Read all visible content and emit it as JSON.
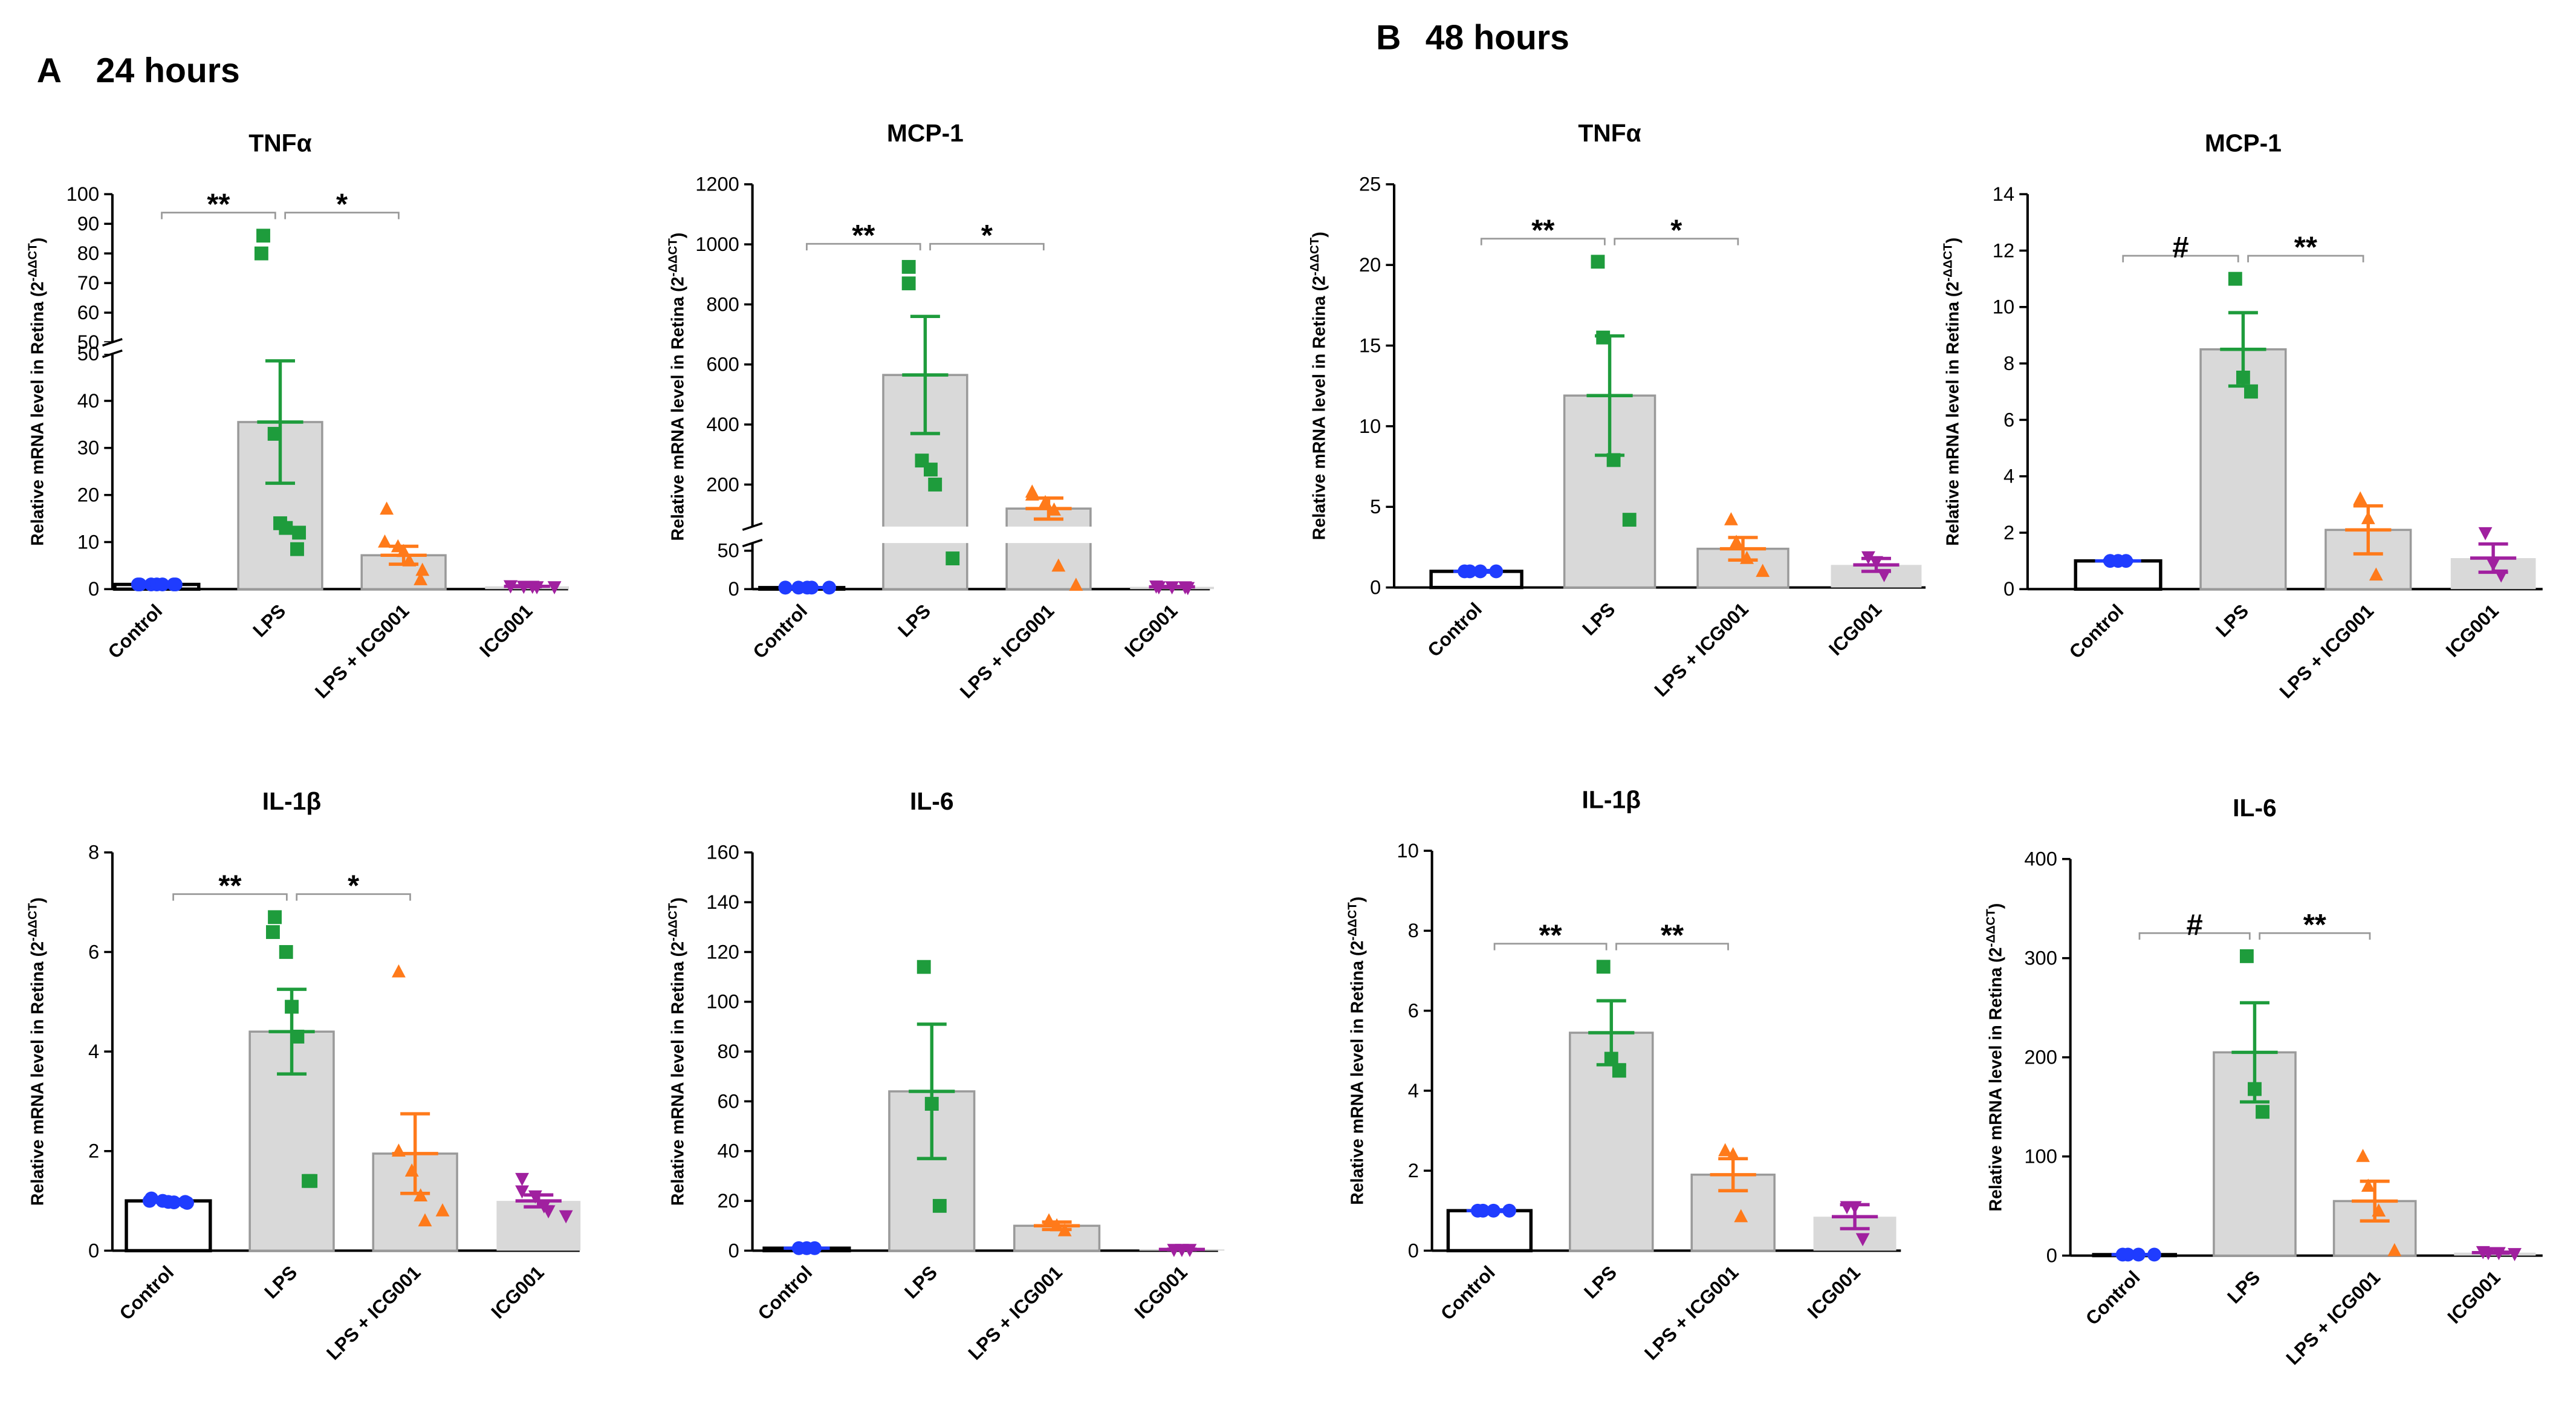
{
  "sections": [
    {
      "letter": "A",
      "title": "24 hours"
    },
    {
      "letter": "B",
      "title": "48 hours"
    }
  ],
  "groups_style": [
    {
      "color": "#1f3cff",
      "marker": "circle",
      "bar_color": "#ffffff",
      "bar_edge": "#000000"
    },
    {
      "color": "#1e9c3c",
      "marker": "square",
      "bar_color": "#d9d9d9",
      "bar_edge": "#9a9a9a"
    },
    {
      "color": "#ff7a1a",
      "marker": "triangle-up",
      "bar_color": "#d9d9d9",
      "bar_edge": "#9a9a9a"
    },
    {
      "color": "#a0209f",
      "marker": "triangle-down",
      "bar_color": "#d9d9d9",
      "bar_edge": "none"
    }
  ],
  "chart_data": [
    {
      "type": "bar",
      "title": "TNFα",
      "ylabel": "Relative mRNA level in Retina (2",
      "ylabel_sup": "-ΔΔCT",
      "ylabel_end": ")",
      "categories": [
        "Control",
        "LPS",
        "LPS + ICG001",
        "ICG001"
      ],
      "ylim": [
        0,
        50
      ],
      "yticks": [
        0,
        10,
        20,
        30,
        40,
        50
      ],
      "ylim_upper": [
        50,
        100
      ],
      "yticks_upper": [
        50,
        60,
        70,
        80,
        90,
        100
      ],
      "groups": [
        {
          "mean": 1,
          "sem": 0.1,
          "points": [
            1,
            1,
            1,
            1,
            1,
            1,
            1
          ]
        },
        {
          "mean": 35.5,
          "sem": 13,
          "points": [
            86,
            80,
            33,
            14,
            13,
            12,
            8.5
          ]
        },
        {
          "mean": 7.2,
          "sem": 1.9,
          "points": [
            17,
            10,
            9,
            8,
            6,
            4,
            2
          ]
        },
        {
          "mean": 0.6,
          "sem": 0.1,
          "points": [
            0.7,
            0.7,
            0.6,
            0.6,
            0.5,
            0.5
          ]
        }
      ],
      "significance": [
        {
          "from": 0,
          "to": 1,
          "label": "**"
        },
        {
          "from": 1,
          "to": 2,
          "label": "*"
        }
      ]
    },
    {
      "type": "bar",
      "title": "MCP-1",
      "ylabel": "Relative mRNA level in Retina (2",
      "ylabel_sup": "-ΔΔCT",
      "ylabel_end": ")",
      "categories": [
        "Control",
        "LPS",
        "LPS + ICG001",
        "ICG001"
      ],
      "ylim": [
        0,
        60
      ],
      "yticks": [
        0,
        50
      ],
      "ylim_upper": [
        60,
        1200
      ],
      "yticks_upper": [
        200,
        400,
        600,
        800,
        1000,
        1200
      ],
      "groups": [
        {
          "mean": 2,
          "sem": 0.3,
          "points": [
            2,
            2,
            2,
            2,
            2,
            2
          ]
        },
        {
          "mean": 565,
          "sem": 195,
          "points": [
            925,
            870,
            280,
            250,
            200,
            40
          ]
        },
        {
          "mean": 120,
          "sem": 35,
          "points": [
            175,
            165,
            140,
            115,
            30,
            5
          ]
        },
        {
          "mean": 3,
          "sem": 0.5,
          "points": [
            4,
            3,
            3,
            3,
            2
          ]
        }
      ],
      "significance": [
        {
          "from": 0,
          "to": 1,
          "label": "**"
        },
        {
          "from": 1,
          "to": 2,
          "label": "*"
        }
      ]
    },
    {
      "type": "bar",
      "title": "TNFα",
      "ylabel": "Relative mRNA level in Retina (2",
      "ylabel_sup": "-ΔΔCT",
      "ylabel_end": ")",
      "categories": [
        "Control",
        "LPS",
        "LPS + ICG001",
        "ICG001"
      ],
      "ylim": [
        0,
        25
      ],
      "yticks": [
        0,
        5,
        10,
        15,
        20,
        25
      ],
      "groups": [
        {
          "mean": 1,
          "sem": 0.05,
          "points": [
            1,
            1,
            1,
            1
          ]
        },
        {
          "mean": 11.9,
          "sem": 3.7,
          "points": [
            20.2,
            15.5,
            7.9,
            4.2
          ]
        },
        {
          "mean": 2.4,
          "sem": 0.7,
          "points": [
            4.2,
            2.8,
            1.8,
            1.0
          ]
        },
        {
          "mean": 1.4,
          "sem": 0.4,
          "points": [
            1.9,
            1.6,
            0.8
          ]
        }
      ],
      "significance": [
        {
          "from": 0,
          "to": 1,
          "label": "**"
        },
        {
          "from": 1,
          "to": 2,
          "label": "*"
        }
      ]
    },
    {
      "type": "bar",
      "title": "MCP-1",
      "ylabel": "Relative mRNA level in Retina (2",
      "ylabel_sup": "-ΔΔCT",
      "ylabel_end": ")",
      "categories": [
        "Control",
        "LPS",
        "LPS + ICG001",
        "ICG001"
      ],
      "ylim": [
        0,
        14
      ],
      "yticks": [
        0,
        2,
        4,
        6,
        8,
        10,
        12,
        14
      ],
      "groups": [
        {
          "mean": 1,
          "sem": 0.02,
          "points": [
            1,
            1,
            1
          ]
        },
        {
          "mean": 8.5,
          "sem": 1.3,
          "points": [
            11,
            7.5,
            7
          ]
        },
        {
          "mean": 2.1,
          "sem": 0.85,
          "points": [
            3.2,
            2.5,
            0.5
          ]
        },
        {
          "mean": 1.1,
          "sem": 0.5,
          "points": [
            2,
            0.9,
            0.5
          ]
        }
      ],
      "significance": [
        {
          "from": 0,
          "to": 1,
          "label": "#"
        },
        {
          "from": 1,
          "to": 2,
          "label": "**"
        }
      ]
    },
    {
      "type": "bar",
      "title": "IL-1β",
      "ylabel": "Relative mRNA level in Retina (2",
      "ylabel_sup": "-ΔΔCT",
      "ylabel_end": ")",
      "categories": [
        "Control",
        "LPS",
        "LPS + ICG001",
        "ICG001"
      ],
      "ylim": [
        0,
        8
      ],
      "yticks": [
        0,
        2,
        4,
        6,
        8
      ],
      "groups": [
        {
          "mean": 1,
          "sem": 0.03,
          "points": [
            1.05,
            1,
            1,
            0.98,
            0.97,
            0.96,
            0.98
          ]
        },
        {
          "mean": 4.4,
          "sem": 0.85,
          "points": [
            6.7,
            6.4,
            6.0,
            4.9,
            4.3,
            1.4,
            1.4
          ]
        },
        {
          "mean": 1.95,
          "sem": 0.8,
          "points": [
            5.6,
            2.0,
            1.6,
            1.1,
            0.6,
            0.8
          ]
        },
        {
          "mean": 1.0,
          "sem": 0.12,
          "points": [
            1.45,
            1.2,
            1.1,
            0.9,
            0.8,
            0.7
          ]
        }
      ],
      "significance": [
        {
          "from": 0,
          "to": 1,
          "label": "**"
        },
        {
          "from": 1,
          "to": 2,
          "label": "*"
        }
      ]
    },
    {
      "type": "bar",
      "title": "IL-6",
      "ylabel": "Relative mRNA level in Retina (2",
      "ylabel_sup": "-ΔΔCT",
      "ylabel_end": ")",
      "categories": [
        "Control",
        "LPS",
        "LPS + ICG001",
        "ICG001"
      ],
      "ylim": [
        0,
        160
      ],
      "yticks": [
        0,
        20,
        40,
        60,
        80,
        100,
        120,
        140,
        160
      ],
      "groups": [
        {
          "mean": 1,
          "sem": 0.1,
          "points": [
            1,
            1,
            1
          ]
        },
        {
          "mean": 64,
          "sem": 27,
          "points": [
            114,
            59,
            18
          ]
        },
        {
          "mean": 10,
          "sem": 1.5,
          "points": [
            12,
            10,
            8
          ]
        },
        {
          "mean": 0.5,
          "sem": 0.1,
          "points": [
            0.5,
            0.5,
            0.5
          ]
        }
      ],
      "significance": []
    },
    {
      "type": "bar",
      "title": "IL-1β",
      "ylabel": "Relative mRNA level in Retina (2",
      "ylabel_sup": "-ΔΔCT",
      "ylabel_end": ")",
      "categories": [
        "Control",
        "LPS",
        "LPS + ICG001",
        "ICG001"
      ],
      "ylim": [
        0,
        10
      ],
      "yticks": [
        0,
        2,
        4,
        6,
        8,
        10
      ],
      "groups": [
        {
          "mean": 1,
          "sem": 0.02,
          "points": [
            1,
            1,
            1,
            1
          ]
        },
        {
          "mean": 5.45,
          "sem": 0.8,
          "points": [
            7.1,
            4.8,
            4.5
          ]
        },
        {
          "mean": 1.9,
          "sem": 0.4,
          "points": [
            2.5,
            2.4,
            0.85
          ]
        },
        {
          "mean": 0.85,
          "sem": 0.3,
          "points": [
            1.1,
            1.1,
            0.3
          ]
        }
      ],
      "significance": [
        {
          "from": 0,
          "to": 1,
          "label": "**"
        },
        {
          "from": 1,
          "to": 2,
          "label": "**"
        }
      ]
    },
    {
      "type": "bar",
      "title": "IL-6",
      "ylabel": "Relative mRNA level in Retina (2",
      "ylabel_sup": "-ΔΔCT",
      "ylabel_end": ")",
      "categories": [
        "Control",
        "LPS",
        "LPS + ICG001",
        "ICG001"
      ],
      "ylim": [
        0,
        400
      ],
      "yticks": [
        0,
        100,
        200,
        300,
        400
      ],
      "groups": [
        {
          "mean": 1,
          "sem": 0.1,
          "points": [
            1,
            1,
            1,
            1
          ]
        },
        {
          "mean": 205,
          "sem": 50,
          "points": [
            302,
            168,
            145
          ]
        },
        {
          "mean": 55,
          "sem": 20,
          "points": [
            100,
            70,
            45,
            5
          ]
        },
        {
          "mean": 3,
          "sem": 0.5,
          "points": [
            4,
            3,
            3,
            2
          ]
        }
      ],
      "significance": [
        {
          "from": 0,
          "to": 1,
          "label": "#"
        },
        {
          "from": 1,
          "to": 2,
          "label": "**"
        }
      ]
    }
  ]
}
